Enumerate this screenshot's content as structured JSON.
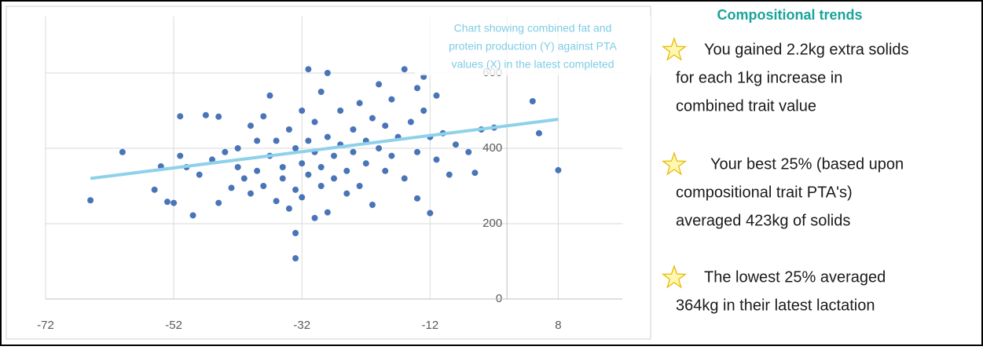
{
  "chart_data": {
    "type": "scatter",
    "title_lines": [
      "Chart showing combined fat and",
      "protein production (Y) against PTA",
      "values (X) in the latest completed"
    ],
    "color": "#4a74b8",
    "trendline_color": "#8ed1ea",
    "grid": true,
    "xlim": [
      -72,
      18
    ],
    "ylim": [
      0,
      750
    ],
    "xticks": [
      -72,
      -52,
      -32,
      -12,
      8
    ],
    "yticks": [
      0,
      200,
      400,
      600
    ],
    "x": [
      -65,
      -60,
      -55,
      -54,
      -53,
      -52,
      -51,
      -51,
      -50,
      -49,
      -48,
      -47,
      -46,
      -45,
      -45,
      -44,
      -43,
      -42,
      -42,
      -41,
      -40,
      -40,
      -39,
      -39,
      -38,
      -38,
      -37,
      -37,
      -36,
      -36,
      -35,
      -35,
      -34,
      -34,
      -33,
      -33,
      -33,
      -33,
      -32,
      -32,
      -32,
      -31,
      -31,
      -31,
      -30,
      -30,
      -30,
      -29,
      -29,
      -29,
      -28,
      -28,
      -28,
      -27,
      -27,
      -26,
      -26,
      -25,
      -25,
      -24,
      -24,
      -23,
      -23,
      -22,
      -22,
      -21,
      -21,
      -20,
      -20,
      -19,
      -19,
      -18,
      -18,
      -17,
      -16,
      -16,
      -15,
      -14,
      -14,
      -13,
      -12,
      -12,
      -11,
      -10,
      -9,
      -8,
      -6,
      -5,
      -4,
      -2,
      5,
      8,
      4,
      -14,
      -11,
      -13
    ],
    "y": [
      262,
      390,
      290,
      352,
      258,
      255,
      485,
      380,
      350,
      222,
      330,
      488,
      370,
      484,
      255,
      390,
      295,
      350,
      400,
      320,
      460,
      280,
      420,
      340,
      485,
      300,
      380,
      540,
      260,
      420,
      350,
      320,
      450,
      240,
      400,
      290,
      108,
      175,
      360,
      500,
      270,
      610,
      420,
      330,
      390,
      215,
      470,
      300,
      550,
      350,
      600,
      430,
      230,
      380,
      320,
      500,
      410,
      340,
      280,
      450,
      390,
      520,
      300,
      420,
      360,
      480,
      250,
      400,
      570,
      340,
      460,
      380,
      530,
      430,
      320,
      610,
      470,
      390,
      267,
      500,
      430,
      228,
      370,
      440,
      330,
      410,
      390,
      335,
      450,
      455,
      440,
      342,
      525,
      560,
      540,
      590
    ],
    "trendline": {
      "x": [
        -65,
        8
      ],
      "y": [
        320,
        477
      ]
    }
  },
  "panel": {
    "heading": "Compositional trends",
    "items": [
      [
        "You gained 2.2kg extra solids",
        "for each 1kg increase in",
        "combined trait value"
      ],
      [
        "Your best 25% (based upon",
        "compositional trait PTA's)",
        "averaged 423kg of solids"
      ],
      [
        "The lowest 25% averaged",
        "364kg in their latest lactation"
      ]
    ]
  }
}
